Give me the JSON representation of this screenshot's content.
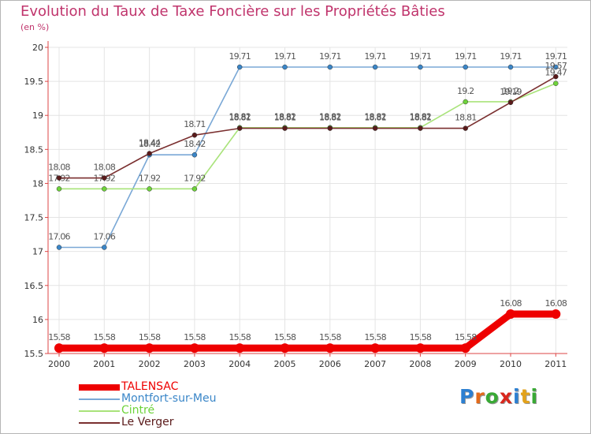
{
  "title": "Evolution du Taux de Taxe Foncière sur les Propriétés Bâties",
  "unit_label": "(en %)",
  "logo": {
    "text": "Proxiti",
    "letters": [
      "P",
      "r",
      "o",
      "x",
      "i",
      "t",
      "i"
    ],
    "colors": [
      "#2c7fd1",
      "#e36a1a",
      "#39a935",
      "#d9271d",
      "#2c7fd1",
      "#e3a21a",
      "#39a935"
    ]
  },
  "chart_data": {
    "type": "line",
    "title": "Evolution du Taux de Taxe Foncière sur les Propriétés Bâties",
    "ylabel": "(en %)",
    "xlabel": "",
    "ylim": [
      15.5,
      20
    ],
    "yticks": [
      "15.5",
      "16",
      "16.5",
      "17",
      "17.5",
      "18",
      "18.5",
      "19",
      "19.5",
      "20"
    ],
    "categories": [
      "2000",
      "2001",
      "2002",
      "2003",
      "2004",
      "2005",
      "2006",
      "2007",
      "2008",
      "2009",
      "2010",
      "2011"
    ],
    "series": [
      {
        "name": "TALENSAC",
        "color": "#ee0000",
        "marker": "#ee0000",
        "values": [
          15.58,
          15.58,
          15.58,
          15.58,
          15.58,
          15.58,
          15.58,
          15.58,
          15.58,
          15.58,
          16.08,
          16.08
        ],
        "labels": [
          "15.58",
          "15.58",
          "15.58",
          "15.58",
          "15.58",
          "15.58",
          "15.58",
          "15.58",
          "15.58",
          "15.58",
          "16.08",
          "16.08"
        ]
      },
      {
        "name": "Montfort-sur-Meu",
        "color": "#7aa8d6",
        "marker": "#3a86c8",
        "values": [
          17.06,
          17.06,
          18.42,
          18.42,
          19.71,
          19.71,
          19.71,
          19.71,
          19.71,
          19.71,
          19.71,
          19.71
        ],
        "labels": [
          "17.06",
          "17.06",
          "18.42",
          "18.42",
          "19.71",
          "19.71",
          "19.71",
          "19.71",
          "19.71",
          "19.71",
          "19.71",
          "19.71"
        ]
      },
      {
        "name": "Cintré",
        "color": "#a9e37a",
        "marker": "#6ed33a",
        "values": [
          17.92,
          17.92,
          17.92,
          17.92,
          18.82,
          18.82,
          18.82,
          18.82,
          18.82,
          19.2,
          19.2,
          19.47
        ],
        "labels": [
          "17.92",
          "17.92",
          "17.92",
          "17.92",
          "18.82",
          "18.82",
          "18.82",
          "18.82",
          "18.82",
          "19.2",
          "19.2",
          "19.47"
        ]
      },
      {
        "name": "Le Verger",
        "color": "#7a2f2f",
        "marker": "#5a1a1a",
        "values": [
          18.08,
          18.08,
          18.44,
          18.71,
          18.81,
          18.81,
          18.81,
          18.81,
          18.81,
          18.81,
          19.19,
          19.57
        ],
        "labels": [
          "18.08",
          "18.08",
          "18.44",
          "18.71",
          "18.81",
          "18.81",
          "18.81",
          "18.81",
          "18.81",
          "18.81",
          "19.19",
          "19.57"
        ]
      }
    ]
  }
}
